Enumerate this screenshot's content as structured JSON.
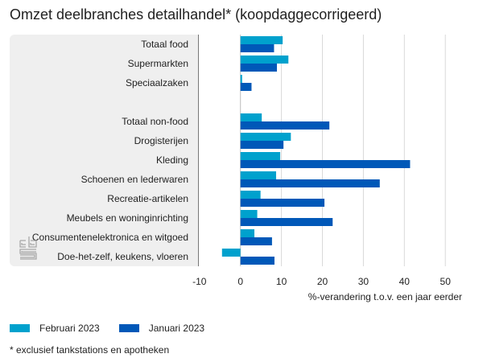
{
  "title": "Omzet deelbranches detailhandel* (koopdaggecorrigeerd)",
  "footnote": "* exclusief tankstations en apotheken",
  "colors": {
    "februari": "#00a1cd",
    "januari": "#0058b8",
    "panel": "#efefef",
    "grid": "#d9d9d9"
  },
  "chart_data": {
    "type": "bar",
    "orientation": "horizontal",
    "title": "Omzet deelbranches detailhandel* (koopdaggecorrigeerd)",
    "xlabel": "%-verandering t.o.v. een jaar eerder",
    "ylabel": "",
    "xlim": [
      -10,
      55
    ],
    "xticks": [
      -10,
      0,
      10,
      20,
      30,
      40,
      50
    ],
    "xtick_labels": [
      "-10",
      "0",
      "10",
      "20",
      "30",
      "40",
      "50"
    ],
    "grid": true,
    "legend_position": "bottom-left",
    "categories": [
      "Totaal food",
      "Supermarkten",
      "Speciaalzaken",
      "",
      "Totaal non-food",
      "Drogisterijen",
      "Kleding",
      "Schoenen en lederwaren",
      "Recreatie-artikelen",
      "Meubels en woninginrichting",
      "Consumentenelektronica en witgoed",
      "Doe-het-zelf, keukens, vloeren"
    ],
    "series": [
      {
        "name": "Februari 2023",
        "color": "#00a1cd",
        "values": [
          10.3,
          11.7,
          0.4,
          null,
          5.2,
          12.3,
          9.7,
          8.7,
          4.9,
          4.1,
          3.4,
          -4.5
        ]
      },
      {
        "name": "Januari 2023",
        "color": "#0058b8",
        "values": [
          8.2,
          8.9,
          2.7,
          null,
          21.7,
          10.5,
          41.4,
          34.0,
          20.5,
          22.5,
          7.7,
          8.3
        ]
      }
    ]
  },
  "logo": {
    "icon": "cbs-logo-icon"
  }
}
